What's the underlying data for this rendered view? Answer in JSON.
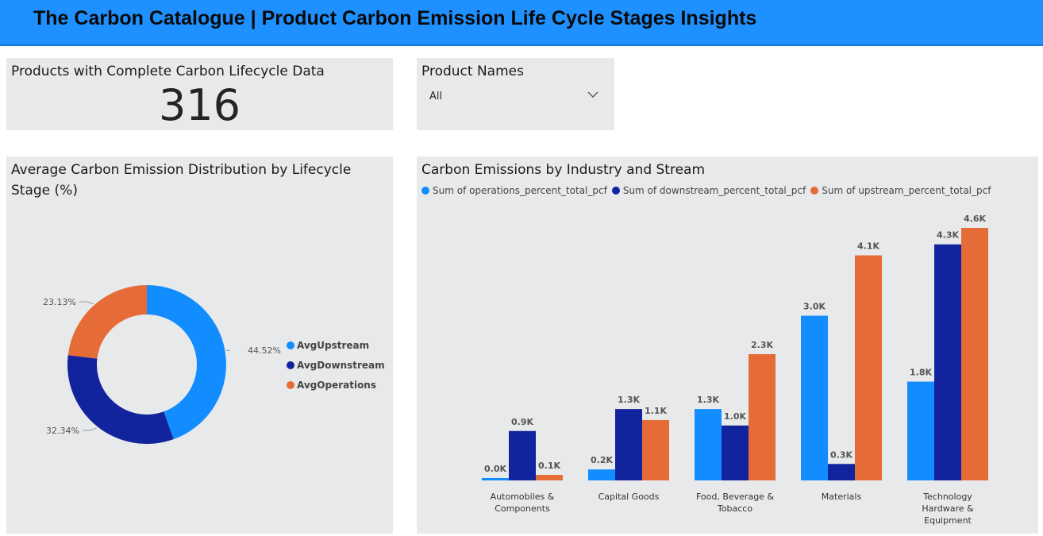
{
  "header": {
    "title": "The Carbon Catalogue | Product Carbon Emission Life Cycle Stages Insights"
  },
  "kpi": {
    "title": "Products with Complete Carbon Lifecycle Data",
    "value": "316"
  },
  "slicer": {
    "title": "Product Names",
    "value": "All"
  },
  "colors": {
    "upstream": "#e66c37",
    "downstream": "#12239e",
    "operations": "#118dff",
    "header": "#1e90ff",
    "card": "#e8e9ea"
  },
  "icons": {
    "dropdown": "chevron-down-icon"
  },
  "chart_data": [
    {
      "type": "pie",
      "variant": "donut",
      "title": "Average Carbon Emission Distribution by Lifecycle Stage (%)",
      "slices": [
        {
          "name": "AvgUpstream",
          "value": 44.52,
          "label": "44.52%",
          "color": "#118dff"
        },
        {
          "name": "AvgDownstream",
          "value": 32.34,
          "label": "32.34%",
          "color": "#12239e"
        },
        {
          "name": "AvgOperations",
          "value": 23.13,
          "label": "23.13%",
          "color": "#e66c37"
        }
      ],
      "legend_placement": "right"
    },
    {
      "type": "bar",
      "title": "Carbon Emissions by Industry and Stream",
      "categories": [
        [
          "Automobiles &",
          "Components"
        ],
        [
          "Capital Goods"
        ],
        [
          "Food, Beverage &",
          "Tobacco"
        ],
        [
          "Materials"
        ],
        [
          "Technology",
          "Hardware &",
          "Equipment"
        ]
      ],
      "series": [
        {
          "name": "Sum of operations_percent_total_pcf",
          "color": "#118dff",
          "values": [
            0.03,
            0.2,
            1.3,
            3.0,
            1.8
          ],
          "labels": [
            "0.0K",
            "0.2K",
            "1.3K",
            "3.0K",
            "1.8K"
          ]
        },
        {
          "name": "Sum of downstream_percent_total_pcf",
          "color": "#12239e",
          "values": [
            0.9,
            1.3,
            1.0,
            0.3,
            4.3
          ],
          "labels": [
            "0.9K",
            "1.3K",
            "1.0K",
            "0.3K",
            "4.3K"
          ]
        },
        {
          "name": "Sum of upstream_percent_total_pcf",
          "color": "#e66c37",
          "values": [
            0.1,
            1.1,
            2.3,
            4.1,
            4.6
          ],
          "labels": [
            "0.1K",
            "1.1K",
            "2.3K",
            "4.1K",
            "4.6K"
          ]
        }
      ],
      "unit": "K",
      "ylim": [
        0,
        4.6
      ],
      "legend_placement": "top-left",
      "grid": false
    }
  ]
}
